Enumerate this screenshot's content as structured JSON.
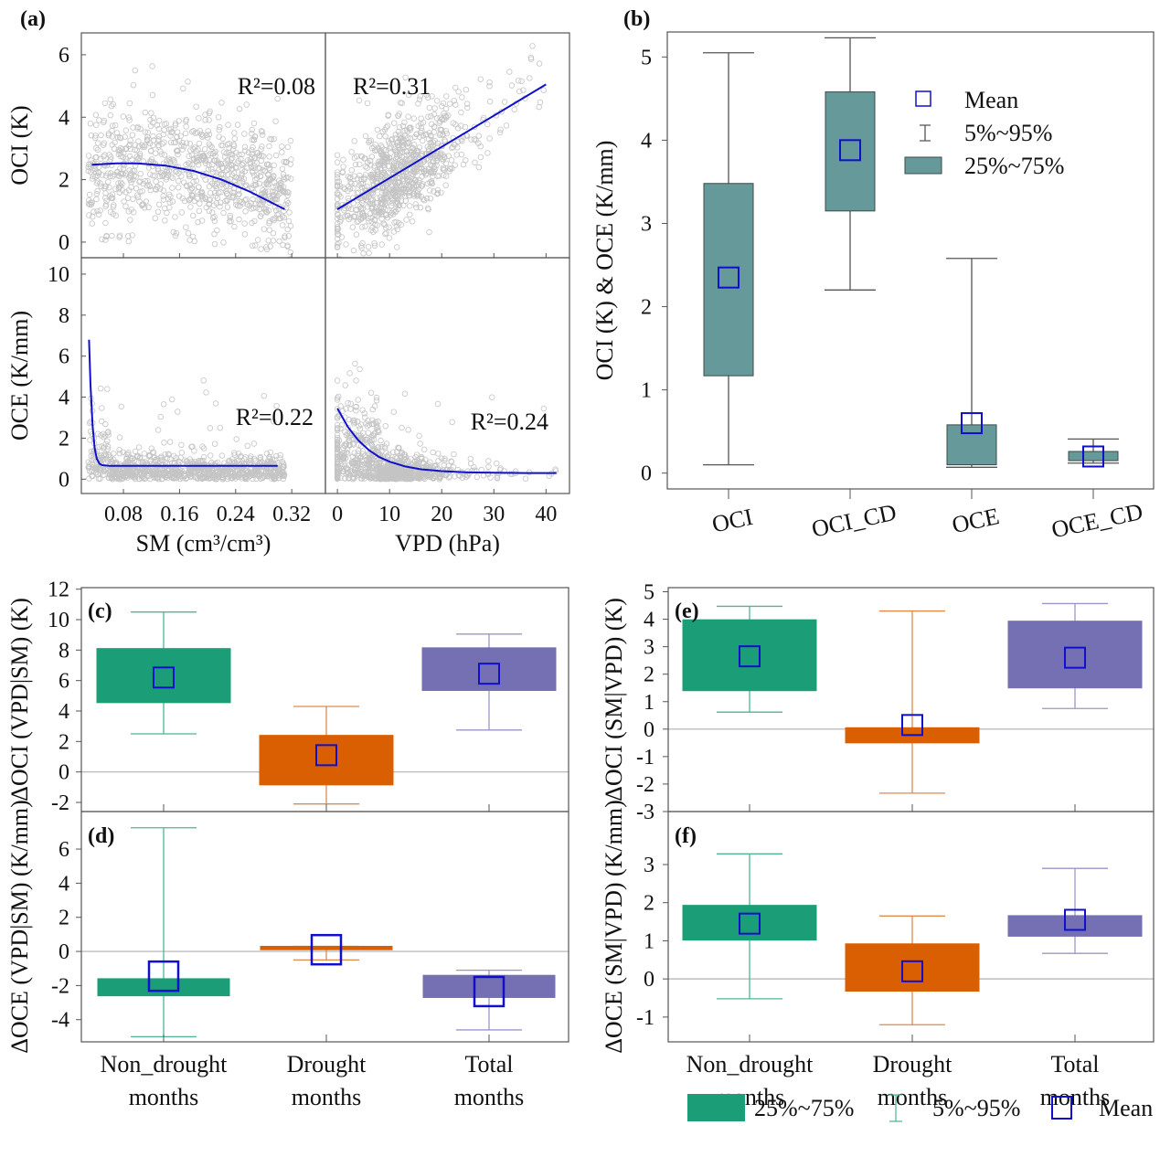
{
  "colors": {
    "scatter": "#c4c4c4",
    "fit": "#1010cc",
    "mean": "#1010cc",
    "box_b": "#669999",
    "non_drought": "#1b9e77",
    "drought": "#d95f02",
    "total": "#7570b3",
    "zero_line": "#b0b0b0"
  },
  "chart_data": [
    {
      "id": "a",
      "panel_label": "(a)",
      "type": "scatter",
      "subplots": [
        {
          "xlabel": "",
          "ylabel": "OCI (K)",
          "yticks": [
            "0",
            "2",
            "4",
            "6"
          ],
          "ylim": [
            -0.5,
            6.7
          ],
          "xlim": [
            0.02,
            0.368
          ],
          "r2": "R²=0.08",
          "fit": {
            "x": [
              0.035,
              0.07,
              0.1,
              0.14,
              0.18,
              0.22,
              0.26,
              0.31
            ],
            "y": [
              2.48,
              2.52,
              2.52,
              2.45,
              2.28,
              2.0,
              1.62,
              1.05
            ]
          }
        },
        {
          "xlabel": "",
          "ylabel": "",
          "yticks": [],
          "ylim": [
            -0.5,
            6.7
          ],
          "xlim": [
            -2.3,
            44.5
          ],
          "r2": "R²=0.31",
          "fit": {
            "x": [
              0,
              40
            ],
            "y": [
              1.05,
              5.05
            ]
          }
        },
        {
          "xlabel": "SM (cm³/cm³)",
          "ylabel": "OCE (K/mm)",
          "yticks": [
            "0",
            "2",
            "4",
            "6",
            "8",
            "10"
          ],
          "xticks": [
            "0.08",
            "0.16",
            "0.24",
            "0.32"
          ],
          "ylim": [
            -0.7,
            10.8
          ],
          "xlim": [
            0.02,
            0.368
          ],
          "r2": "R²=0.22",
          "fit": {
            "x": [
              0.031,
              0.033,
              0.036,
              0.039,
              0.042,
              0.046,
              0.05,
              0.06,
              0.1,
              0.2,
              0.3
            ],
            "y": [
              6.8,
              4.6,
              2.6,
              1.5,
              1.0,
              0.75,
              0.68,
              0.65,
              0.65,
              0.65,
              0.65
            ]
          }
        },
        {
          "xlabel": "VPD (hPa)",
          "ylabel": "",
          "yticks": [],
          "xticks": [
            "0",
            "10",
            "20",
            "30",
            "40"
          ],
          "ylim": [
            -0.7,
            10.8
          ],
          "xlim": [
            -2.3,
            44.5
          ],
          "r2": "R²=0.24",
          "fit": {
            "x": [
              0,
              2,
              4,
              6,
              8,
              10,
              13,
              16,
              20,
              25,
              30,
              36,
              42
            ],
            "y": [
              3.45,
              2.55,
              1.9,
              1.42,
              1.08,
              0.85,
              0.62,
              0.48,
              0.39,
              0.33,
              0.31,
              0.3,
              0.3
            ]
          }
        }
      ]
    },
    {
      "id": "b",
      "panel_label": "(b)",
      "type": "box",
      "ylabel": "OCI (K) & OCE (K/mm)",
      "yticks": [
        "0",
        "1",
        "2",
        "3",
        "4",
        "5"
      ],
      "ylim": [
        -0.19,
        5.3
      ],
      "categories": [
        "OCI",
        "OCI_CD",
        "OCE",
        "OCE_CD"
      ],
      "p5": [
        0.1,
        2.2,
        0.07,
        0.12
      ],
      "q25": [
        1.17,
        3.15,
        0.1,
        0.15
      ],
      "q75": [
        3.48,
        4.58,
        0.58,
        0.26
      ],
      "p95": [
        5.05,
        5.23,
        2.58,
        0.41
      ],
      "mean": [
        2.35,
        3.88,
        0.6,
        0.2
      ],
      "legend": {
        "mean": "Mean",
        "whisker": "5%~95%",
        "box": "25%~75%"
      }
    },
    {
      "id": "c",
      "panel_label": "(c)",
      "type": "box",
      "ylabel": "ΔOCI (VPD|SM) (K)",
      "yticks": [
        "-2",
        "0",
        "2",
        "4",
        "6",
        "8",
        "10",
        "12"
      ],
      "ylim": [
        -2.6,
        12.1
      ],
      "categories": [
        "Non_drought months",
        "Drought months",
        "Total months"
      ],
      "p5": [
        2.5,
        -2.1,
        2.75
      ],
      "q25": [
        4.55,
        -0.85,
        5.35
      ],
      "q75": [
        8.1,
        2.4,
        8.15
      ],
      "p95": [
        10.5,
        4.3,
        9.05
      ],
      "mean": [
        6.2,
        1.1,
        6.45
      ]
    },
    {
      "id": "d",
      "panel_label": "(d)",
      "type": "box",
      "ylabel": "ΔOCE (VPD|SM) (K/mm)",
      "yticks": [
        "-4",
        "-2",
        "0",
        "2",
        "4",
        "6"
      ],
      "ylim": [
        -5.3,
        8.2
      ],
      "categories": [
        "Non_drought months",
        "Drought months",
        "Total months"
      ],
      "p5": [
        -5.0,
        -0.5,
        -4.6
      ],
      "q25": [
        -2.6,
        0.1,
        -2.7
      ],
      "q75": [
        -1.6,
        0.3,
        -1.4
      ],
      "p95": [
        7.25,
        0.3,
        -1.1
      ],
      "mean": [
        -1.45,
        0.1,
        -2.35
      ]
    },
    {
      "id": "e",
      "panel_label": "(e)",
      "type": "box",
      "ylabel": "ΔOCI (SM|VPD) (K)",
      "yticks": [
        "-3",
        "-2",
        "-1",
        "0",
        "1",
        "2",
        "3",
        "4",
        "5"
      ],
      "ylim": [
        -3.0,
        5.15
      ],
      "categories": [
        "Non_drought months",
        "Drought months",
        "Total months"
      ],
      "p5": [
        0.62,
        -2.33,
        0.75
      ],
      "q25": [
        1.4,
        -0.5,
        1.5
      ],
      "q75": [
        3.98,
        0.05,
        3.93
      ],
      "p95": [
        4.47,
        4.3,
        4.57
      ],
      "mean": [
        2.65,
        0.15,
        2.6
      ]
    },
    {
      "id": "f",
      "panel_label": "(f)",
      "type": "box",
      "ylabel": "ΔOCE (SM|VPD) (K/mm)",
      "yticks": [
        "-1",
        "0",
        "1",
        "2",
        "3"
      ],
      "ylim": [
        -1.65,
        4.39
      ],
      "categories": [
        "Non_drought months",
        "Drought months",
        "Total months"
      ],
      "p5": [
        -0.52,
        -1.2,
        0.67
      ],
      "q25": [
        1.02,
        -0.32,
        1.12
      ],
      "q75": [
        1.93,
        0.92,
        1.66
      ],
      "p95": [
        3.28,
        1.65,
        2.9
      ],
      "mean": [
        1.45,
        0.2,
        1.55
      ],
      "legend": {
        "box": "25%~75%",
        "whisker": "5%~95%",
        "mean": "Mean"
      }
    }
  ]
}
